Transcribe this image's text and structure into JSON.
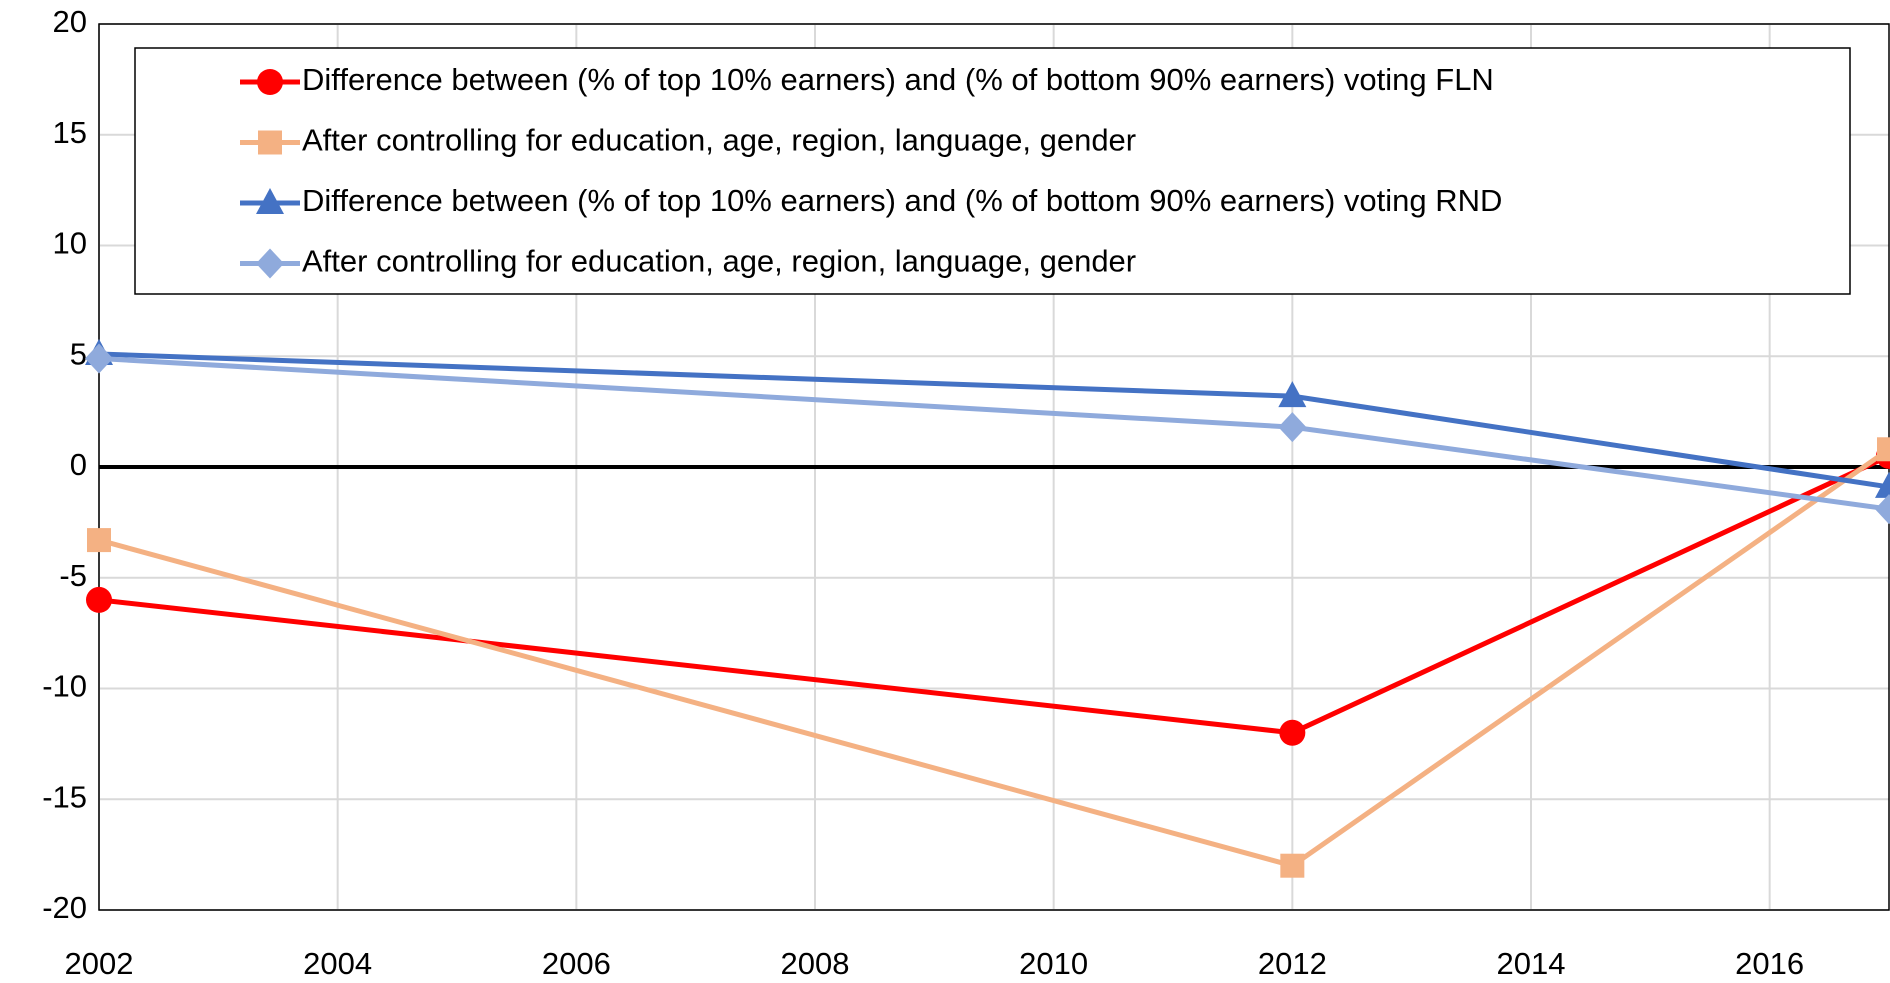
{
  "chart_data": {
    "type": "line",
    "x": [
      2002,
      2012,
      2017
    ],
    "series": [
      {
        "name": "Difference between (% of top 10% earners) and (% of bottom 90% earners) voting FLN",
        "color": "#ff0000",
        "marker": "circle",
        "values": [
          -6,
          -12,
          0.5
        ]
      },
      {
        "name": "After controlling for education, age, region, language, gender",
        "color": "#f4b183",
        "marker": "square",
        "values": [
          -3.3,
          -18,
          0.8
        ]
      },
      {
        "name": "Difference between (% of top 10% earners) and (% of bottom 90% earners) voting RND",
        "color": "#4472c4",
        "marker": "triangle",
        "values": [
          5.1,
          3.2,
          -0.9
        ]
      },
      {
        "name": "After controlling for education, age, region, language, gender",
        "color": "#8faadc",
        "marker": "diamond",
        "values": [
          4.9,
          1.8,
          -1.9
        ]
      }
    ],
    "xlim": [
      2002,
      2017
    ],
    "xticks": [
      2002,
      2004,
      2006,
      2008,
      2010,
      2012,
      2014,
      2016
    ],
    "ylim": [
      -20,
      20
    ],
    "yticks": [
      -20,
      -15,
      -10,
      -5,
      0,
      5,
      10,
      15,
      20
    ],
    "grid": true
  }
}
